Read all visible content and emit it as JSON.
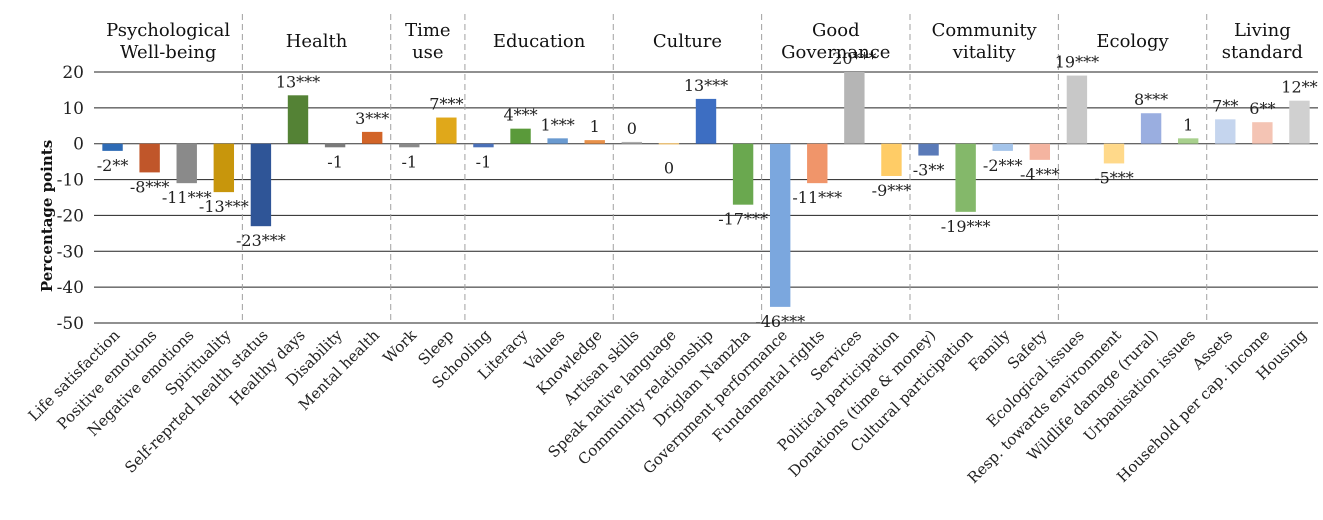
{
  "chart_data": {
    "type": "bar",
    "ylabel": "Percentage points",
    "ylim": [
      -50,
      20
    ],
    "yticks": [
      -50,
      -40,
      -30,
      -20,
      -10,
      0,
      10,
      20
    ],
    "grid": true,
    "groups": [
      {
        "label": [
          "Psychological",
          "Well-being"
        ],
        "count": 4
      },
      {
        "label": [
          "Health"
        ],
        "count": 4
      },
      {
        "label": [
          "Time",
          "use"
        ],
        "count": 2
      },
      {
        "label": [
          "Education"
        ],
        "count": 4
      },
      {
        "label": [
          "Culture"
        ],
        "count": 4
      },
      {
        "label": [
          "Good",
          "Governance"
        ],
        "count": 4
      },
      {
        "label": [
          "Community",
          "vitality"
        ],
        "count": 4
      },
      {
        "label": [
          "Ecology"
        ],
        "count": 4
      },
      {
        "label": [
          "Living",
          "standard"
        ],
        "count": 3
      }
    ],
    "categories": [
      "Life satisfaction",
      "Positive emotions",
      "Negative emotions",
      "Spirituality",
      "Self-reprted health status",
      "Healthy days",
      "Disability",
      "Mental health",
      "Work",
      "Sleep",
      "Schooling",
      "Literacy",
      "Values",
      "Knowledge",
      "Artisan skills",
      "Speak native language",
      "Community relationship",
      "Driglam Namzha",
      "Government performance",
      "Fundamental rights",
      "Services",
      "Political participation",
      "Donations (time & money)",
      "Cultural participation",
      "Family",
      "Safety",
      "Ecological issues",
      "Resp. towards environment",
      "Wildlife damage (rural)",
      "Urbanisation issues",
      "Assets",
      "Household per cap. income",
      "Housing"
    ],
    "values": [
      -2,
      -8,
      -11,
      -13.5,
      -23,
      13.5,
      -1,
      3.3,
      -1,
      7.3,
      -1,
      4.2,
      1.5,
      1,
      0.5,
      0.2,
      12.5,
      -17,
      -45.5,
      -11,
      20,
      -9,
      -3.3,
      -19,
      -2,
      -4.5,
      19,
      -5.5,
      8.5,
      1.5,
      6.8,
      6,
      12
    ],
    "labels": [
      "-2**",
      "-8***",
      "-11***",
      "-13***",
      "-23***",
      "13***",
      "-1",
      "3***",
      "-1",
      "7***",
      "-1",
      "4***",
      "1***",
      "1",
      "0",
      "0",
      "13***",
      "-17***",
      "-46***",
      "-11***",
      "20***",
      "-9***",
      "-3**",
      "-19***",
      "-2***",
      "-4***",
      "19***",
      "-5***",
      "8***",
      "1",
      "7**",
      "6**",
      "12**"
    ],
    "colors": [
      "#2e6bb5",
      "#c0562a",
      "#8a8a8a",
      "#c8960c",
      "#2f5597",
      "#548235",
      "#7a7a7a",
      "#d26428",
      "#8a8a8a",
      "#e0a81a",
      "#4a70b8",
      "#5a9a3a",
      "#6a9ad0",
      "#e8914a",
      "#b0b0b0",
      "#e8c07a",
      "#3d6ec2",
      "#6aa84f",
      "#7ba7de",
      "#f0956a",
      "#b5b5b5",
      "#ffcc66",
      "#5a7ab8",
      "#84b86a",
      "#a4c4ea",
      "#f4b4a0",
      "#c8c8c8",
      "#ffd98a",
      "#9aaee0",
      "#a8d08d",
      "#c5d5ee",
      "#f4c4b4",
      "#d0d0d0"
    ]
  }
}
